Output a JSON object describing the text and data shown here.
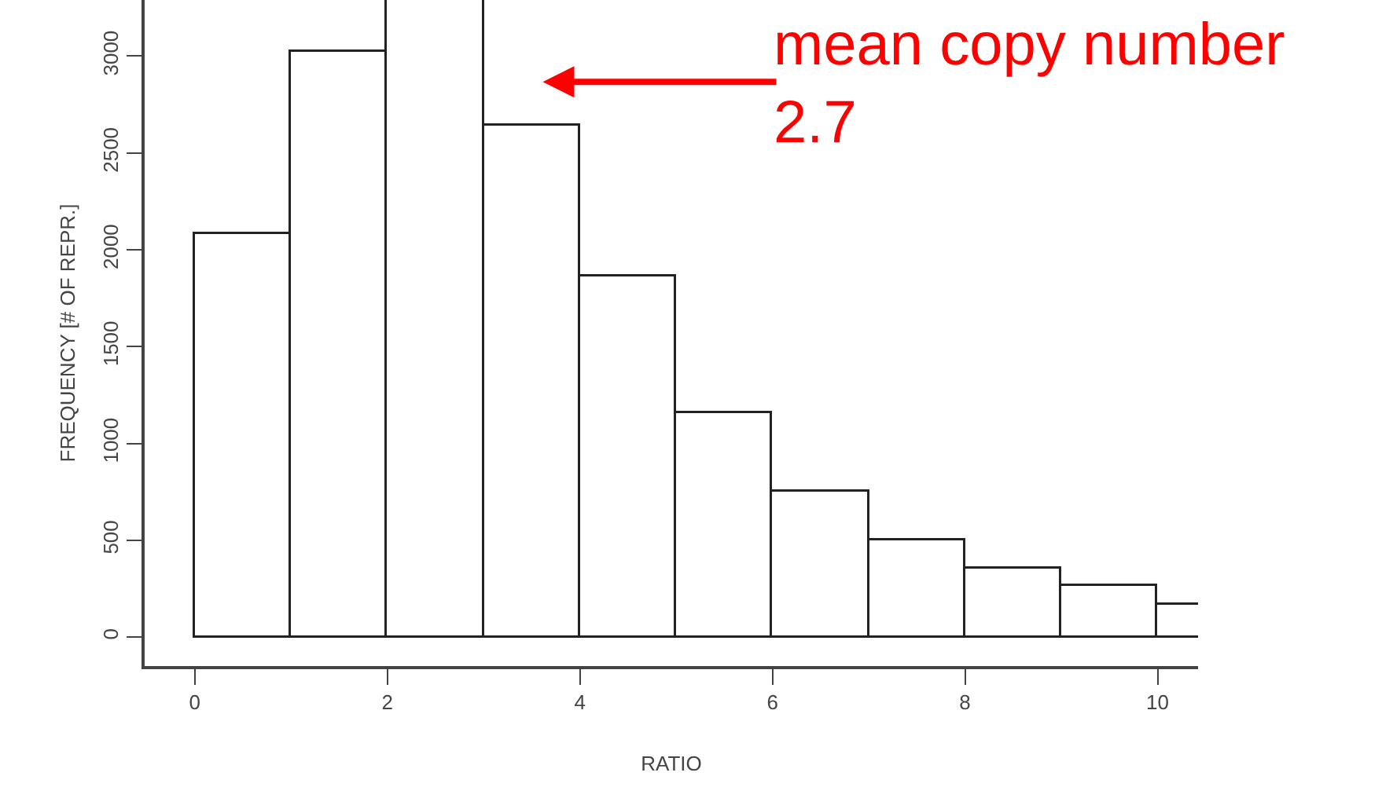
{
  "chart_data": {
    "type": "histogram",
    "xlabel": "RATIO",
    "ylabel": "FREQUENCY [# OF REPR.]",
    "bins": [
      0,
      1,
      2,
      3,
      4,
      5,
      6,
      7,
      8,
      9,
      10,
      11
    ],
    "values": [
      2080,
      3020,
      3290,
      2640,
      1860,
      1160,
      750,
      500,
      350,
      260,
      170
    ],
    "color": "#ffffff",
    "xlim": [
      -0.52,
      10.42
    ],
    "xticks": [
      0,
      2,
      4,
      6,
      8,
      10
    ],
    "ylim": [
      -150,
      3290
    ],
    "yticks": [
      0,
      500,
      1000,
      1500,
      2000,
      2500,
      3000
    ],
    "annotations": [
      "mean copy number\n2.7"
    ]
  }
}
